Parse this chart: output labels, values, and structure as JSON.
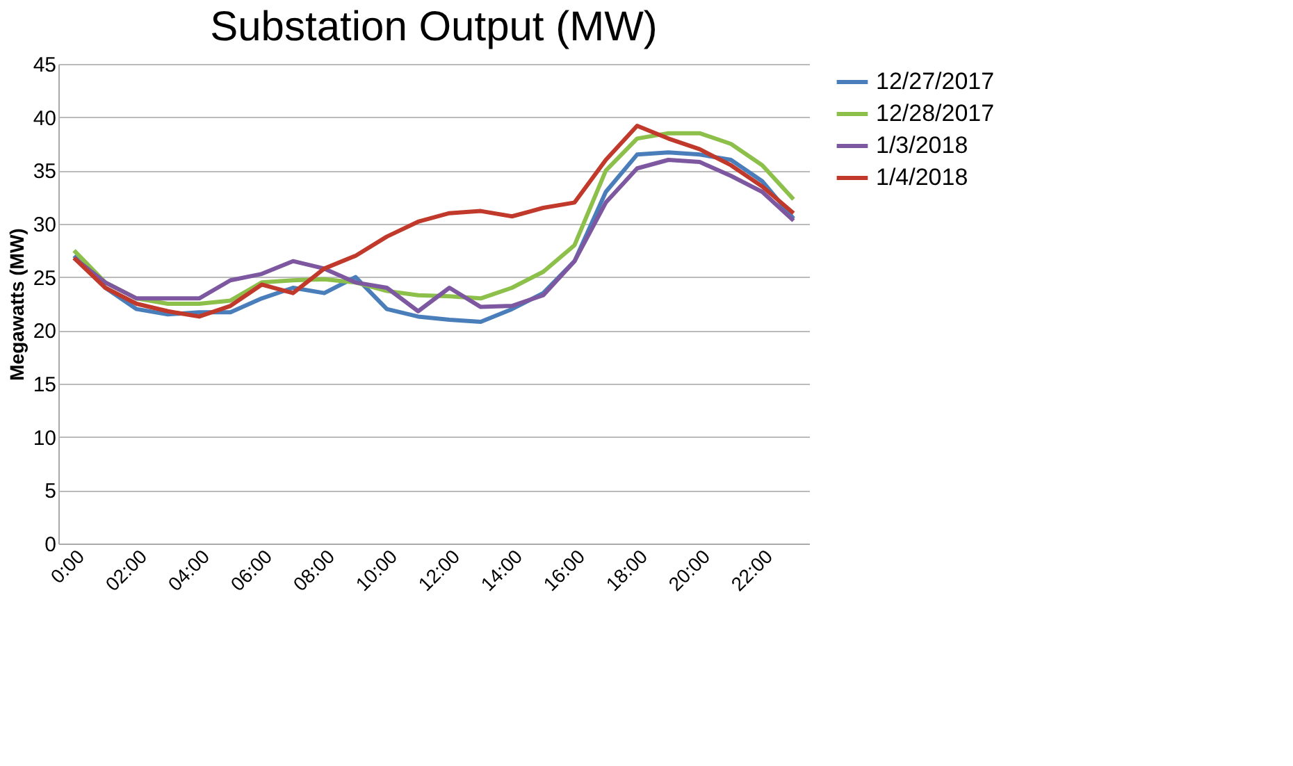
{
  "chart_data": {
    "type": "line",
    "title": "Substation Output (MW)",
    "ylabel": "Megawatts (MW)",
    "categories": [
      "0:00",
      null,
      "02:00",
      null,
      "04:00",
      null,
      "06:00",
      null,
      "08:00",
      null,
      "10:00",
      null,
      "12:00",
      null,
      "14:00",
      null,
      "16:00",
      null,
      "18:00",
      null,
      "20:00",
      null,
      "22:00",
      null
    ],
    "series": [
      {
        "name": "12/27/2017",
        "color": "#4a7ebb",
        "values": [
          27,
          24,
          22,
          21.5,
          21.7,
          21.7,
          23,
          24,
          23.5,
          25,
          22,
          21.3,
          21,
          20.8,
          22,
          23.5,
          26.5,
          33,
          36.5,
          36.7,
          36.5,
          36,
          34,
          30.5
        ]
      },
      {
        "name": "12/28/2017",
        "color": "#8cc04a",
        "values": [
          27.5,
          24.5,
          23,
          22.5,
          22.5,
          22.8,
          24.5,
          24.7,
          24.8,
          24.5,
          23.7,
          23.3,
          23.2,
          23,
          24,
          25.5,
          28,
          35,
          38,
          38.5,
          38.5,
          37.5,
          35.5,
          32.3
        ]
      },
      {
        "name": "1/3/2018",
        "color": "#7d58a0",
        "values": [
          26.8,
          24.5,
          23,
          23,
          23,
          24.7,
          25.3,
          26.5,
          25.8,
          24.5,
          24,
          21.8,
          24,
          22.2,
          22.3,
          23.3,
          26.5,
          32,
          35.2,
          36,
          35.8,
          34.5,
          33,
          30.3
        ]
      },
      {
        "name": "1/4/2018",
        "color": "#c0392b",
        "values": [
          26.8,
          24,
          22.5,
          21.8,
          21.3,
          22.3,
          24.3,
          23.5,
          25.8,
          27,
          28.8,
          30.2,
          31,
          31.2,
          30.7,
          31.5,
          32,
          36,
          39.2,
          38,
          37,
          35.5,
          33.5,
          31
        ]
      }
    ],
    "ylim": [
      0,
      45
    ],
    "yticks": [
      0,
      5,
      10,
      15,
      20,
      25,
      30,
      35,
      40,
      45
    ],
    "grid": "y",
    "legend": "right",
    "marker": "none",
    "line_style": "solid"
  }
}
